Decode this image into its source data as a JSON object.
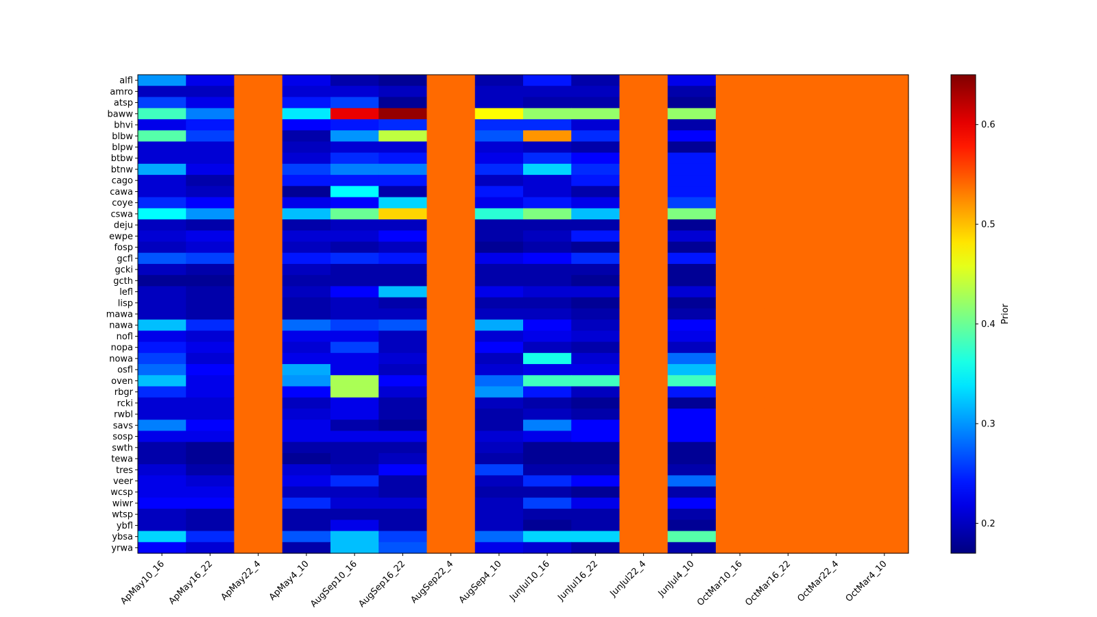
{
  "chart_data": {
    "type": "heatmap",
    "colormap": "jet",
    "missing_color": "#ff6a00",
    "colorbar": {
      "label": "Prior",
      "range": [
        0.17,
        0.65
      ],
      "ticks": [
        0.2,
        0.3,
        0.4,
        0.5,
        0.6
      ],
      "tick_labels": [
        "0.2",
        "0.3",
        "0.4",
        "0.5",
        "0.6"
      ]
    },
    "columns": [
      "ApMay10_16",
      "ApMay16_22",
      "ApMay22_4",
      "ApMay4_10",
      "AugSep10_16",
      "AugSep16_22",
      "AugSep22_4",
      "AugSep4_10",
      "JunJul10_16",
      "JunJul16_22",
      "JunJul22_4",
      "JunJul4_10",
      "OctMar10_16",
      "OctMar16_22",
      "OctMar22_4",
      "OctMar4_10"
    ],
    "rows": [
      "alfl",
      "amro",
      "atsp",
      "baww",
      "bhvi",
      "blbw",
      "blpw",
      "btbw",
      "btnw",
      "cago",
      "cawa",
      "coye",
      "cswa",
      "deju",
      "ewpe",
      "fosp",
      "gcfl",
      "gcki",
      "gcth",
      "lefl",
      "lisp",
      "mawa",
      "nawa",
      "nofl",
      "nopa",
      "nowa",
      "osfl",
      "oven",
      "rbgr",
      "rcki",
      "rwbl",
      "savs",
      "sosp",
      "swth",
      "tewa",
      "tres",
      "veer",
      "wcsp",
      "wiwr",
      "wtsp",
      "ybfl",
      "ybsa",
      "yrwa"
    ],
    "values": [
      [
        0.3,
        0.22,
        null,
        0.22,
        0.19,
        0.18,
        null,
        0.19,
        0.24,
        0.19,
        null,
        0.22,
        null,
        null,
        null,
        null
      ],
      [
        0.2,
        0.2,
        null,
        0.21,
        0.21,
        0.2,
        null,
        0.2,
        0.2,
        0.2,
        null,
        0.19,
        null,
        null,
        null,
        null
      ],
      [
        0.26,
        0.22,
        null,
        0.24,
        0.26,
        0.18,
        null,
        0.2,
        0.19,
        0.19,
        null,
        0.18,
        null,
        null,
        null,
        null
      ],
      [
        0.38,
        0.29,
        null,
        0.34,
        0.6,
        0.64,
        null,
        0.47,
        0.42,
        0.42,
        null,
        0.42,
        null,
        null,
        null,
        null
      ],
      [
        0.22,
        0.24,
        null,
        0.23,
        0.24,
        0.25,
        null,
        0.25,
        0.25,
        0.21,
        null,
        0.19,
        null,
        null,
        null,
        null
      ],
      [
        0.39,
        0.26,
        null,
        0.19,
        0.3,
        0.44,
        null,
        0.27,
        0.52,
        0.25,
        null,
        0.23,
        null,
        null,
        null,
        null
      ],
      [
        0.21,
        0.21,
        null,
        0.2,
        0.21,
        0.21,
        null,
        0.21,
        0.2,
        0.19,
        null,
        0.18,
        null,
        null,
        null,
        null
      ],
      [
        0.21,
        0.21,
        null,
        0.21,
        0.25,
        0.24,
        null,
        0.22,
        0.25,
        0.23,
        null,
        0.24,
        null,
        null,
        null,
        null
      ],
      [
        0.31,
        0.22,
        null,
        0.26,
        0.29,
        0.29,
        null,
        0.25,
        0.33,
        0.25,
        null,
        0.24,
        null,
        null,
        null,
        null
      ],
      [
        0.21,
        0.19,
        null,
        0.24,
        0.24,
        0.24,
        null,
        0.2,
        0.21,
        0.24,
        null,
        0.24,
        null,
        null,
        null,
        null
      ],
      [
        0.21,
        0.2,
        null,
        0.18,
        0.35,
        0.19,
        null,
        0.24,
        0.21,
        0.19,
        null,
        0.24,
        null,
        null,
        null,
        null
      ],
      [
        0.25,
        0.23,
        null,
        0.22,
        0.23,
        0.33,
        null,
        0.22,
        0.24,
        0.22,
        null,
        0.26,
        null,
        null,
        null,
        null
      ],
      [
        0.35,
        0.3,
        null,
        0.32,
        0.4,
        0.49,
        null,
        0.37,
        0.41,
        0.32,
        null,
        0.41,
        null,
        null,
        null,
        null
      ],
      [
        0.2,
        0.19,
        null,
        0.19,
        0.2,
        0.2,
        null,
        0.19,
        0.19,
        0.19,
        null,
        0.18,
        null,
        null,
        null,
        null
      ],
      [
        0.21,
        0.22,
        null,
        0.21,
        0.21,
        0.23,
        null,
        0.19,
        0.2,
        0.24,
        null,
        0.21,
        null,
        null,
        null,
        null
      ],
      [
        0.2,
        0.21,
        null,
        0.2,
        0.19,
        0.2,
        null,
        0.18,
        0.19,
        0.18,
        null,
        0.18,
        null,
        null,
        null,
        null
      ],
      [
        0.27,
        0.26,
        null,
        0.24,
        0.25,
        0.24,
        null,
        0.22,
        0.23,
        0.25,
        null,
        0.24,
        null,
        null,
        null,
        null
      ],
      [
        0.2,
        0.19,
        null,
        0.2,
        0.19,
        0.19,
        null,
        0.19,
        0.19,
        0.19,
        null,
        0.18,
        null,
        null,
        null,
        null
      ],
      [
        0.18,
        0.18,
        null,
        0.19,
        0.19,
        0.19,
        null,
        0.19,
        0.19,
        0.18,
        null,
        0.18,
        null,
        null,
        null,
        null
      ],
      [
        0.2,
        0.19,
        null,
        0.2,
        0.23,
        0.32,
        null,
        0.22,
        0.21,
        0.21,
        null,
        0.21,
        null,
        null,
        null,
        null
      ],
      [
        0.2,
        0.19,
        null,
        0.19,
        0.2,
        0.19,
        null,
        0.19,
        0.19,
        0.18,
        null,
        0.18,
        null,
        null,
        null,
        null
      ],
      [
        0.2,
        0.19,
        null,
        0.19,
        0.2,
        0.2,
        null,
        0.2,
        0.2,
        0.19,
        null,
        0.19,
        null,
        null,
        null,
        null
      ],
      [
        0.32,
        0.25,
        null,
        0.28,
        0.26,
        0.27,
        null,
        0.31,
        0.23,
        0.2,
        null,
        0.23,
        null,
        null,
        null,
        null
      ],
      [
        0.22,
        0.21,
        null,
        0.22,
        0.22,
        0.2,
        null,
        0.21,
        0.22,
        0.21,
        null,
        0.22,
        null,
        null,
        null,
        null
      ],
      [
        0.24,
        0.22,
        null,
        0.21,
        0.26,
        0.2,
        null,
        0.23,
        0.2,
        0.19,
        null,
        0.2,
        null,
        null,
        null,
        null
      ],
      [
        0.26,
        0.21,
        null,
        0.22,
        0.22,
        0.21,
        null,
        0.2,
        0.36,
        0.21,
        null,
        0.28,
        null,
        null,
        null,
        null
      ],
      [
        0.28,
        0.23,
        null,
        0.31,
        0.22,
        0.2,
        null,
        0.21,
        0.22,
        0.22,
        null,
        0.32,
        null,
        null,
        null,
        null
      ],
      [
        0.32,
        0.22,
        null,
        0.3,
        0.43,
        0.23,
        null,
        0.28,
        0.38,
        0.38,
        null,
        0.38,
        null,
        null,
        null,
        null
      ],
      [
        0.25,
        0.22,
        null,
        0.23,
        0.43,
        0.21,
        null,
        0.3,
        0.24,
        0.2,
        null,
        0.24,
        null,
        null,
        null,
        null
      ],
      [
        0.21,
        0.21,
        null,
        0.2,
        0.22,
        0.19,
        null,
        0.2,
        0.19,
        0.18,
        null,
        0.18,
        null,
        null,
        null,
        null
      ],
      [
        0.21,
        0.21,
        null,
        0.21,
        0.22,
        0.19,
        null,
        0.19,
        0.2,
        0.19,
        null,
        0.23,
        null,
        null,
        null,
        null
      ],
      [
        0.29,
        0.23,
        null,
        0.22,
        0.19,
        0.18,
        null,
        0.19,
        0.29,
        0.23,
        null,
        0.23,
        null,
        null,
        null,
        null
      ],
      [
        0.22,
        0.22,
        null,
        0.22,
        0.22,
        0.22,
        null,
        0.21,
        0.22,
        0.23,
        null,
        0.23,
        null,
        null,
        null,
        null
      ],
      [
        0.19,
        0.18,
        null,
        0.19,
        0.19,
        0.19,
        null,
        0.2,
        0.18,
        0.18,
        null,
        0.18,
        null,
        null,
        null,
        null
      ],
      [
        0.19,
        0.18,
        null,
        0.18,
        0.19,
        0.2,
        null,
        0.19,
        0.18,
        0.18,
        null,
        0.18,
        null,
        null,
        null,
        null
      ],
      [
        0.21,
        0.19,
        null,
        0.21,
        0.2,
        0.23,
        null,
        0.26,
        0.19,
        0.19,
        null,
        0.19,
        null,
        null,
        null,
        null
      ],
      [
        0.22,
        0.21,
        null,
        0.22,
        0.25,
        0.19,
        null,
        0.2,
        0.25,
        0.23,
        null,
        0.28,
        null,
        null,
        null,
        null
      ],
      [
        0.22,
        0.22,
        null,
        0.2,
        0.2,
        0.19,
        null,
        0.19,
        0.19,
        0.18,
        null,
        0.19,
        null,
        null,
        null,
        null
      ],
      [
        0.23,
        0.23,
        null,
        0.25,
        0.21,
        0.21,
        null,
        0.2,
        0.26,
        0.22,
        null,
        0.23,
        null,
        null,
        null,
        null
      ],
      [
        0.2,
        0.19,
        null,
        0.19,
        0.19,
        0.19,
        null,
        0.2,
        0.19,
        0.19,
        null,
        0.19,
        null,
        null,
        null,
        null
      ],
      [
        0.2,
        0.19,
        null,
        0.19,
        0.22,
        0.19,
        null,
        0.2,
        0.18,
        0.19,
        null,
        0.18,
        null,
        null,
        null,
        null
      ],
      [
        0.33,
        0.25,
        null,
        0.27,
        0.32,
        0.26,
        null,
        0.28,
        0.33,
        0.33,
        null,
        0.39,
        null,
        null,
        null,
        null
      ],
      [
        0.23,
        0.21,
        null,
        0.19,
        0.32,
        0.27,
        null,
        0.22,
        0.21,
        0.19,
        null,
        0.19,
        null,
        null,
        null,
        null
      ]
    ]
  }
}
